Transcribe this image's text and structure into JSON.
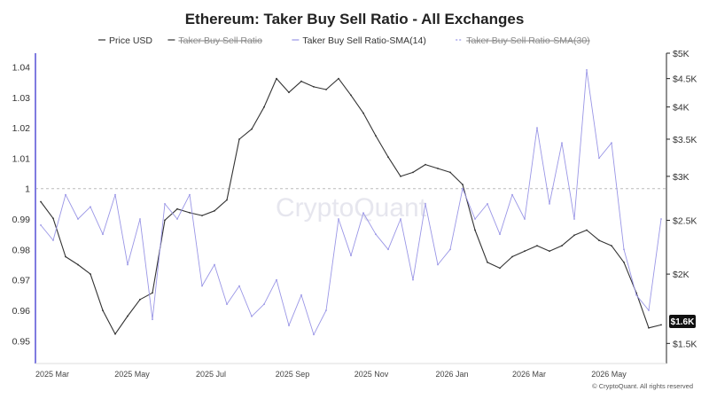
{
  "chart_data": {
    "type": "line",
    "title": "Ethereum: Taker Buy Sell Ratio - All Exchanges",
    "legend": [
      {
        "name": "Price USD",
        "color": "#333333",
        "style": "solid",
        "hidden": false
      },
      {
        "name": "Taker Buy Sell Ratio",
        "color": "#333333",
        "style": "solid",
        "hidden": true
      },
      {
        "name": "Taker Buy Sell Ratio-SMA(14)",
        "color": "#9a96e6",
        "style": "solid",
        "hidden": false
      },
      {
        "name": "Taker Buy Sell Ratio-SMA(30)",
        "color": "#9a96e6",
        "style": "dashed",
        "hidden": true
      }
    ],
    "legend_placement": "top-center",
    "x_ticks": [
      "2025 Mar",
      "2025 May",
      "2025 Jul",
      "2025 Sep",
      "2025 Nov",
      "2026 Jan",
      "2026 Mar",
      "2026 May"
    ],
    "y_left": {
      "ticks": [
        "1.04",
        "1.03",
        "1.02",
        "1.01",
        "1",
        "0.99",
        "0.98",
        "0.97",
        "0.96",
        "0.95"
      ],
      "range": [
        0.9425,
        1.0445
      ],
      "reference_line": 1
    },
    "y_right": {
      "scale": "log",
      "ticks": [
        "$5K",
        "$4.5K",
        "$4K",
        "$3.5K",
        "$3K",
        "$2.5K",
        "$2K",
        "$1.5K"
      ],
      "range": [
        1380,
        5000
      ]
    },
    "price_badge": "$1.6K",
    "watermark": "CryptoQuant",
    "copyright": "© CryptoQuant. All rights reserved",
    "series": [
      {
        "name": "Price USD",
        "axis": "right",
        "x": [
          0,
          2,
          4,
          6,
          8,
          10,
          12,
          14,
          16,
          18,
          20,
          22,
          24,
          26,
          28,
          30,
          32,
          34,
          36,
          38,
          40,
          42,
          44,
          46,
          48,
          50,
          52,
          54,
          56,
          58,
          60,
          62,
          64,
          66,
          68,
          70,
          72,
          74,
          76,
          78,
          80,
          82,
          84,
          86,
          88,
          90,
          92,
          94,
          96,
          98,
          100
        ],
        "values": [
          2700,
          2520,
          2150,
          2080,
          2000,
          1720,
          1560,
          1680,
          1800,
          1850,
          2500,
          2620,
          2580,
          2550,
          2600,
          2720,
          3500,
          3650,
          4000,
          4500,
          4250,
          4450,
          4350,
          4300,
          4500,
          4200,
          3900,
          3550,
          3250,
          3000,
          3050,
          3150,
          3100,
          3050,
          2900,
          2400,
          2100,
          2050,
          2150,
          2200,
          2250,
          2200,
          2250,
          2350,
          2400,
          2300,
          2250,
          2100,
          1850,
          1600,
          1620
        ]
      },
      {
        "name": "Taker Buy Sell Ratio-SMA(14)",
        "axis": "left",
        "x": [
          0,
          2,
          4,
          6,
          8,
          10,
          12,
          14,
          16,
          18,
          20,
          22,
          24,
          26,
          28,
          30,
          32,
          34,
          36,
          38,
          40,
          42,
          44,
          46,
          48,
          50,
          52,
          54,
          56,
          58,
          60,
          62,
          64,
          66,
          68,
          70,
          72,
          74,
          76,
          78,
          80,
          82,
          84,
          86,
          88,
          90,
          92,
          94,
          96,
          98,
          100
        ],
        "values": [
          0.988,
          0.983,
          0.998,
          0.99,
          0.994,
          0.985,
          0.998,
          0.975,
          0.99,
          0.957,
          0.995,
          0.99,
          0.998,
          0.968,
          0.975,
          0.962,
          0.968,
          0.958,
          0.962,
          0.97,
          0.955,
          0.965,
          0.952,
          0.96,
          0.99,
          0.978,
          0.992,
          0.985,
          0.98,
          0.99,
          0.97,
          0.995,
          0.975,
          0.98,
          1.0,
          0.99,
          0.995,
          0.985,
          0.998,
          0.99,
          1.02,
          0.995,
          1.015,
          0.99,
          1.039,
          1.01,
          1.015,
          0.98,
          0.965,
          0.96,
          0.99
        ]
      }
    ]
  }
}
